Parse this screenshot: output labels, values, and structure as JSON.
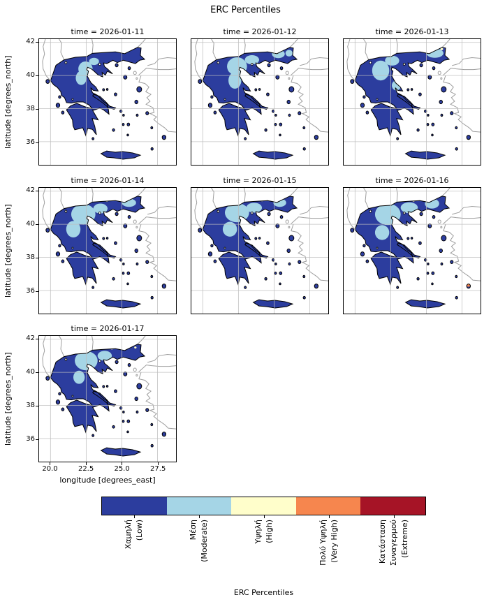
{
  "figure": {
    "title": "ERC Percentiles"
  },
  "axes": {
    "ylabel": "latitude [degrees_north]",
    "xlabel": "longitude [degrees_east]",
    "yticks": [
      "42",
      "40",
      "38",
      "36"
    ],
    "xticks": [
      "20.0",
      "22.5",
      "25.0",
      "27.5"
    ]
  },
  "colorbar": {
    "label": "ERC Percentiles",
    "categories": [
      {
        "name": "low",
        "label": "Χαμηλή\n(Low)",
        "color": "#2c3d9e"
      },
      {
        "name": "moderate",
        "label": "Μέση\n(Moderate)",
        "color": "#a5d5e6"
      },
      {
        "name": "high",
        "label": "Υψηλή\n(High)",
        "color": "#fffecb"
      },
      {
        "name": "very-high",
        "label": "Πολύ Υψηλή\n(Very High)",
        "color": "#f6864e"
      },
      {
        "name": "extreme",
        "label": "Κατάσταση\nΣυναγερμού\n(Extreme)",
        "color": "#a61426"
      }
    ]
  },
  "chart_data": {
    "type": "heatmap",
    "title": "ERC Percentiles",
    "xlabel": "longitude [degrees_east]",
    "ylabel": "latitude [degrees_north]",
    "xlim": [
      19.2,
      28.8
    ],
    "ylim": [
      34.6,
      42.2
    ],
    "xticks": [
      20.0,
      22.5,
      25.0,
      27.5
    ],
    "yticks": [
      36,
      38,
      40,
      42
    ],
    "grid": true,
    "legend_position": "bottom-colorbar",
    "categories": [
      "Χαμηλή (Low)",
      "Μέση (Moderate)",
      "Υψηλή (High)",
      "Πολύ Υψηλή (Very High)",
      "Κατάσταση Συναγερμού (Extreme)"
    ],
    "region": "Greece",
    "facets": [
      {
        "title": "time = 2026-01-11",
        "date": "2026-01-11",
        "dominant": "Χαμηλή (Low)",
        "patches": [
          {
            "lon": 22.45,
            "lat": 40.4,
            "rx": 0.5,
            "ry": 0.45,
            "cat": 1
          },
          {
            "lon": 22.15,
            "lat": 39.85,
            "rx": 0.38,
            "ry": 0.42,
            "cat": 1
          },
          {
            "lon": 23.05,
            "lat": 40.85,
            "rx": 0.35,
            "ry": 0.22,
            "cat": 1
          }
        ]
      },
      {
        "title": "time = 2026-01-12",
        "date": "2026-01-12",
        "dominant": "Χαμηλή (Low)",
        "patches": [
          {
            "lon": 22.4,
            "lat": 40.55,
            "rx": 0.7,
            "ry": 0.55,
            "cat": 1
          },
          {
            "lon": 23.45,
            "lat": 40.95,
            "rx": 0.5,
            "ry": 0.28,
            "cat": 1
          },
          {
            "lon": 22.25,
            "lat": 39.7,
            "rx": 0.45,
            "ry": 0.5,
            "cat": 1
          },
          {
            "lon": 25.3,
            "lat": 41.3,
            "rx": 0.45,
            "ry": 0.25,
            "cat": 1
          },
          {
            "lon": 26.05,
            "lat": 41.35,
            "rx": 0.25,
            "ry": 0.2,
            "cat": 1
          }
        ]
      },
      {
        "title": "time = 2026-01-13",
        "date": "2026-01-13",
        "dominant": "Χαμηλή (Low)",
        "patches": [
          {
            "lon": 21.8,
            "lat": 40.3,
            "rx": 0.6,
            "ry": 0.6,
            "cat": 1
          },
          {
            "lon": 22.6,
            "lat": 40.9,
            "rx": 0.5,
            "ry": 0.3,
            "cat": 1
          },
          {
            "lon": 25.6,
            "lat": 41.35,
            "rx": 0.6,
            "ry": 0.28,
            "cat": 1
          },
          {
            "lon": 22.9,
            "lat": 39.4,
            "rx": 0.32,
            "ry": 0.3,
            "cat": 1
          },
          {
            "lon": 26.08,
            "lat": 41.6,
            "rx": 0.1,
            "ry": 0.07,
            "cat": 2
          }
        ]
      },
      {
        "title": "time = 2026-01-14",
        "date": "2026-01-14",
        "dominant": "Χαμηλή (Low)",
        "patches": [
          {
            "lon": 22.3,
            "lat": 40.6,
            "rx": 0.85,
            "ry": 0.62,
            "cat": 1
          },
          {
            "lon": 21.6,
            "lat": 39.7,
            "rx": 0.5,
            "ry": 0.5,
            "cat": 1
          },
          {
            "lon": 23.5,
            "lat": 40.95,
            "rx": 0.5,
            "ry": 0.3,
            "cat": 1
          },
          {
            "lon": 25.5,
            "lat": 41.3,
            "rx": 0.5,
            "ry": 0.25,
            "cat": 1
          },
          {
            "lon": 23.95,
            "lat": 41.42,
            "rx": 0.09,
            "ry": 0.06,
            "cat": 2
          }
        ]
      },
      {
        "title": "time = 2026-01-15",
        "date": "2026-01-15",
        "dominant": "Χαμηλή (Low)",
        "patches": [
          {
            "lon": 22.4,
            "lat": 40.7,
            "rx": 0.85,
            "ry": 0.58,
            "cat": 1
          },
          {
            "lon": 23.6,
            "lat": 41.0,
            "rx": 0.55,
            "ry": 0.3,
            "cat": 1
          },
          {
            "lon": 21.9,
            "lat": 39.7,
            "rx": 0.5,
            "ry": 0.45,
            "cat": 1
          },
          {
            "lon": 25.4,
            "lat": 41.3,
            "rx": 0.45,
            "ry": 0.25,
            "cat": 1
          },
          {
            "lon": 24.15,
            "lat": 41.44,
            "rx": 0.09,
            "ry": 0.06,
            "cat": 2
          }
        ]
      },
      {
        "title": "time = 2026-01-16",
        "date": "2026-01-16",
        "dominant": "Χαμηλή (Low)",
        "patches": [
          {
            "lon": 22.3,
            "lat": 40.6,
            "rx": 0.9,
            "ry": 0.65,
            "cat": 1
          },
          {
            "lon": 23.8,
            "lat": 41.0,
            "rx": 0.6,
            "ry": 0.33,
            "cat": 1
          },
          {
            "lon": 21.9,
            "lat": 39.5,
            "rx": 0.5,
            "ry": 0.45,
            "cat": 1
          },
          {
            "lon": 25.4,
            "lat": 41.25,
            "rx": 0.5,
            "ry": 0.3,
            "cat": 1
          },
          {
            "lon": 24.1,
            "lat": 41.42,
            "rx": 0.08,
            "ry": 0.06,
            "cat": 2
          },
          {
            "lon": 26.9,
            "lat": 36.6,
            "rx": 0.1,
            "ry": 0.08,
            "cat": 3
          },
          {
            "lon": 27.3,
            "lat": 36.9,
            "rx": 0.08,
            "ry": 0.06,
            "cat": 3
          },
          {
            "lon": 27.96,
            "lat": 36.3,
            "rx": 0.12,
            "ry": 0.08,
            "cat": 3
          }
        ]
      },
      {
        "title": "time = 2026-01-17",
        "date": "2026-01-17",
        "dominant": "Χαμηλή (Low)",
        "patches": [
          {
            "lon": 22.5,
            "lat": 40.7,
            "rx": 0.8,
            "ry": 0.58,
            "cat": 1
          },
          {
            "lon": 23.8,
            "lat": 41.0,
            "rx": 0.5,
            "ry": 0.3,
            "cat": 1
          },
          {
            "lon": 22.0,
            "lat": 39.7,
            "rx": 0.4,
            "ry": 0.4,
            "cat": 1
          },
          {
            "lon": 24.3,
            "lat": 41.44,
            "rx": 0.09,
            "ry": 0.06,
            "cat": 2
          },
          {
            "lon": 25.95,
            "lat": 41.5,
            "rx": 0.08,
            "ry": 0.06,
            "cat": 2
          },
          {
            "lon": 27.0,
            "lat": 36.7,
            "rx": 0.08,
            "ry": 0.06,
            "cat": 3
          }
        ]
      }
    ]
  }
}
